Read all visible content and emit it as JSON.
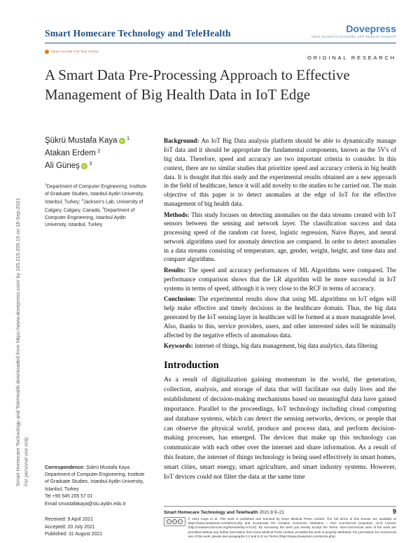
{
  "sidebar": {
    "download_notice": "Smart Homecare Technology and TeleHealth downloaded from https://www.dovepress.com/ by 165.215.209.15 on 18-Sep-2021",
    "personal_use": "For personal use only."
  },
  "header": {
    "journal": "Smart Homecare Technology and TeleHealth",
    "publisher": "Dovepress",
    "tagline": "open access to scientific and medical research"
  },
  "article": {
    "open_access_label": "Open Access Full Text Article",
    "type": "ORIGINAL RESEARCH",
    "title": "A Smart Data Pre-Processing Approach to Effective Management of Big Health Data in IoT Edge"
  },
  "authors": [
    {
      "name": "Şükrü Mustafa Kaya",
      "sup": "1"
    },
    {
      "name": "Atakan Erdem",
      "sup": "2"
    },
    {
      "name": "Ali Güneş",
      "sup": "3"
    }
  ],
  "affiliations": [
    {
      "sup": "1",
      "text": "Department of Computer Engineering, Institute of Graduate Studies, Istanbul Aydin University, Istanbul, Turkey; "
    },
    {
      "sup": "2",
      "text": "Jackson's Lab, University of Calgary, Calgary, Canada; "
    },
    {
      "sup": "3",
      "text": "Department of Computer Engineering, Istanbul Aydin University, Istanbul, Turkey"
    }
  ],
  "abstract": {
    "sections": [
      {
        "label": "Background:",
        "text": "An IoT Big Data analysis platform should be able to dynamically manage IoT data and it should be appropriate the fundamental components, known as the 5V's of big data. Therefore, speed and accuracy are two important criteria to consider. In this context, there are no similar studies that prioritize speed and accuracy criteria in big health data. It is thought that this study and the experimental results obtained are a new approach in the field of healthcare, hence it will add novelty to the studies to be carried out. The main objective of this paper is to detect anomalies at the edge of IoT for the effective management of big health data."
      },
      {
        "label": "Methods:",
        "text": "This study focuses on detecting anomalies on the data streams created with IoT sensors between the sensing and network layer. The classification success and data processing speed of the random cut forest, logistic regression, Naive Bayes, and neural network algorithms used for anomaly detection are compared. In order to detect anomalies in a data streams consisting of temperature, age, gender, weight, height, and time data and compare algorithms."
      },
      {
        "label": "Results:",
        "text": "The speed and accuracy performances of ML Algorithms were compared. The performance comparison shows that the LR algorithm will be more successful in IoT systems in terms of speed, although it is very close to the RCF in terms of accuracy."
      },
      {
        "label": "Conclusion:",
        "text": "The experimental results show that using ML algorithms on IoT edges will help make effective and timely decisions in the healthcare domain. Thus, the big data generated by the IoT sensing layer in healthcare will be formed at a more manageable level. Also, thanks to this, service providers, users, and other interested sides will be minimally affected by the negative effects of anomalous data."
      },
      {
        "label": "Keywords:",
        "text": "internet of things, big data management, big data analytics, data filtering"
      }
    ]
  },
  "introduction": {
    "heading": "Introduction",
    "paragraph": "As a result of digitalization gaining momentum in the world, the generation, collection, analysis, and storage of data that will facilitate our daily lives and the establishment of decision-making mechanisms based on meaningful data have gained importance. Parallel to the proceedings, IoT technology including cloud computing and database systems, which can detect the sensing networks, devices, or people that can observe the physical world, produce and process data, and perform decision-making processes, has emerged. The devices that make up this technology can communicate with each other over the internet and share information. As a result of this feature, the internet of things technology is being used effectively in smart homes, smart cities, smart energy, smart agriculture, and smart industry systems. However, IoT devices could not filter the data at the same time"
  },
  "correspondence": {
    "label": "Correspondence:",
    "name": "Şükrü Mustafa Kaya",
    "address": "Department of Computer Engineering, Institute of Graduate Studies, Istanbul Aydin University, Istanbul, Turkey",
    "tel": "Tel +90 545 205 57 01",
    "email": "Email smustafakaya@stu.aydin.edu.tr"
  },
  "dates": {
    "received": "Received: 9 April 2021",
    "accepted": "Accepted: 20 July 2021",
    "published": "Published: 31 August 2021"
  },
  "footer": {
    "citation_journal": "Smart Homecare Technology and TeleHealth",
    "citation_rest": " 2021:8 9–21",
    "page_number": "9",
    "license_text": "© 2021 Kaya et al. This work is published and licensed by Dove Medical Press Limited. The full terms of this license are available at https://www.dovepress.com/terms.php and incorporate the Creative Commons Attribution – Non Commercial (unported, v3.0) License (http://creativecommons.org/licenses/by-nc/3.0/). By accessing the work you hereby accept the Terms. Non-commercial uses of the work are permitted without any further permission from Dove Medical Press Limited, provided the work is properly attributed. For permission for commercial use of this work, please see paragraphs 4.2 and 5 of our Terms (https://www.dovepress.com/terms.php)."
  }
}
